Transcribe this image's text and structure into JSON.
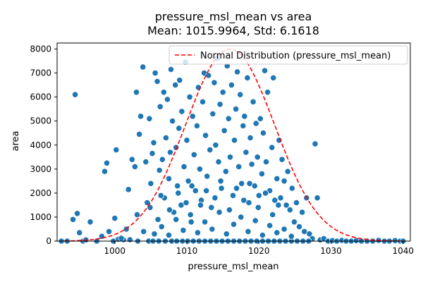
{
  "chart_data": {
    "type": "scatter",
    "title": "pressure_msl_mean vs area",
    "subtitle": "Mean: 1015.9964, Std: 6.1618",
    "xlabel": "pressure_msl_mean",
    "ylabel": "area",
    "xlim": [
      992.0,
      1041.0
    ],
    "ylim": [
      0,
      8250
    ],
    "xticks": [
      1000,
      1010,
      1020,
      1030,
      1040
    ],
    "yticks": [
      0,
      1000,
      2000,
      3000,
      4000,
      5000,
      6000,
      7000,
      8000
    ],
    "grid": false,
    "legend": {
      "position": "top-right",
      "entries": [
        "Normal Distribution (pressure_msl_mean)"
      ]
    },
    "colors": {
      "points": "#1f77b4",
      "points_edge": "#ffffff",
      "curve": "#ff0000"
    },
    "scatter_series": {
      "name": "",
      "points": [
        [
          992.6,
          0
        ],
        [
          993.4,
          0
        ],
        [
          994.2,
          900
        ],
        [
          994.5,
          6100
        ],
        [
          994.8,
          1150
        ],
        [
          995.1,
          350
        ],
        [
          995.6,
          0
        ],
        [
          996.0,
          50
        ],
        [
          996.6,
          800
        ],
        [
          997.5,
          0
        ],
        [
          998.2,
          200
        ],
        [
          998.6,
          2900
        ],
        [
          998.9,
          3250
        ],
        [
          999.2,
          400
        ],
        [
          999.8,
          0
        ],
        [
          1000.0,
          950
        ],
        [
          1000.2,
          3800
        ],
        [
          1000.5,
          80
        ],
        [
          1001.2,
          60
        ],
        [
          1001.6,
          500
        ],
        [
          1001.9,
          2150
        ],
        [
          1002.4,
          3400
        ],
        [
          1002.8,
          3100
        ],
        [
          1003.0,
          6200
        ],
        [
          1003.1,
          1100
        ],
        [
          1003.4,
          4450
        ],
        [
          1003.6,
          5200
        ],
        [
          1003.9,
          7250
        ],
        [
          1004.0,
          400
        ],
        [
          1004.3,
          3300
        ],
        [
          1004.5,
          1600
        ],
        [
          1004.8,
          5100
        ],
        [
          1005.0,
          2400
        ],
        [
          1005.2,
          3650
        ],
        [
          1005.4,
          4100
        ],
        [
          1005.6,
          7000
        ],
        [
          1005.9,
          6650
        ],
        [
          1006.0,
          900
        ],
        [
          1006.2,
          2950
        ],
        [
          1006.3,
          5600
        ],
        [
          1006.6,
          3400
        ],
        [
          1006.8,
          6200
        ],
        [
          1006.9,
          1800
        ],
        [
          1007.1,
          4300
        ],
        [
          1007.3,
          5900
        ],
        [
          1007.5,
          2600
        ],
        [
          1007.7,
          3700
        ],
        [
          1007.8,
          7150
        ],
        [
          1008.0,
          5000
        ],
        [
          1008.2,
          1200
        ],
        [
          1008.4,
          6500
        ],
        [
          1008.5,
          3900
        ],
        [
          1008.7,
          2300
        ],
        [
          1008.9,
          4700
        ],
        [
          1009.0,
          6700
        ],
        [
          1009.2,
          1500
        ],
        [
          1009.3,
          5400
        ],
        [
          1009.6,
          3100
        ],
        [
          1009.8,
          7450
        ],
        [
          1010.0,
          4200
        ],
        [
          1010.2,
          2500
        ],
        [
          1010.4,
          6000
        ],
        [
          1010.6,
          800
        ],
        [
          1010.8,
          5200
        ],
        [
          1011.0,
          3600
        ],
        [
          1011.2,
          2100
        ],
        [
          1011.4,
          4800
        ],
        [
          1011.6,
          6400
        ],
        [
          1011.8,
          3000
        ],
        [
          1012.0,
          1700
        ],
        [
          1012.2,
          5800
        ],
        [
          1012.4,
          7000
        ],
        [
          1012.6,
          4400
        ],
        [
          1012.8,
          2700
        ],
        [
          1013.0,
          6900
        ],
        [
          1013.2,
          3800
        ],
        [
          1013.4,
          1400
        ],
        [
          1013.6,
          5300
        ],
        [
          1013.8,
          6600
        ],
        [
          1014.0,
          4000
        ],
        [
          1014.2,
          7600
        ],
        [
          1014.4,
          3300
        ],
        [
          1014.6,
          5700
        ],
        [
          1014.8,
          2200
        ],
        [
          1015.0,
          6200
        ],
        [
          1015.2,
          4600
        ],
        [
          1015.4,
          2900
        ],
        [
          1015.6,
          7300
        ],
        [
          1015.8,
          5100
        ],
        [
          1016.0,
          3500
        ],
        [
          1016.2,
          6500
        ],
        [
          1016.4,
          1900
        ],
        [
          1016.6,
          4200
        ],
        [
          1016.8,
          5500
        ],
        [
          1017.0,
          7050
        ],
        [
          1017.2,
          3100
        ],
        [
          1017.4,
          6100
        ],
        [
          1017.6,
          2400
        ],
        [
          1017.8,
          4800
        ],
        [
          1018.0,
          5200
        ],
        [
          1018.2,
          3700
        ],
        [
          1018.4,
          6800
        ],
        [
          1018.6,
          1600
        ],
        [
          1018.8,
          4300
        ],
        [
          1019.0,
          3200
        ],
        [
          1019.2,
          5800
        ],
        [
          1019.4,
          2300
        ],
        [
          1019.6,
          4900
        ],
        [
          1019.8,
          3500
        ],
        [
          1020.0,
          1900
        ],
        [
          1020.2,
          5100
        ],
        [
          1020.4,
          2800
        ],
        [
          1020.6,
          4500
        ],
        [
          1020.8,
          7100
        ],
        [
          1021.0,
          3300
        ],
        [
          1021.2,
          6200
        ],
        [
          1021.5,
          2100
        ],
        [
          1021.8,
          3900
        ],
        [
          1022.0,
          6800
        ],
        [
          1022.2,
          1700
        ],
        [
          1022.5,
          2600
        ],
        [
          1022.8,
          4200
        ],
        [
          1023.0,
          1800
        ],
        [
          1023.2,
          3400
        ],
        [
          1023.5,
          2500
        ],
        [
          1023.8,
          1500
        ],
        [
          1024.0,
          2900
        ],
        [
          1024.3,
          1300
        ],
        [
          1024.6,
          2200
        ],
        [
          1024.9,
          800
        ],
        [
          1025.2,
          1600
        ],
        [
          1025.6,
          600
        ],
        [
          1026.0,
          1200
        ],
        [
          1026.3,
          400
        ],
        [
          1026.6,
          1800
        ],
        [
          1027.0,
          300
        ],
        [
          1027.4,
          100
        ],
        [
          1027.8,
          4050
        ],
        [
          1028.1,
          1800
        ],
        [
          1028.5,
          50
        ],
        [
          1029.0,
          100
        ],
        [
          1029.6,
          0
        ],
        [
          1030.2,
          20
        ],
        [
          1030.8,
          0
        ],
        [
          1031.5,
          30
        ],
        [
          1032.1,
          0
        ],
        [
          1032.8,
          0
        ],
        [
          1033.5,
          20
        ],
        [
          1034.2,
          0
        ],
        [
          1035.0,
          0
        ],
        [
          1035.8,
          0
        ],
        [
          1036.6,
          30
        ],
        [
          1037.4,
          0
        ],
        [
          1038.1,
          0
        ],
        [
          1038.9,
          20
        ],
        [
          1039.6,
          0
        ],
        [
          1040.0,
          0
        ],
        [
          1003.2,
          0
        ],
        [
          1004.7,
          0
        ],
        [
          1005.3,
          0
        ],
        [
          1006.1,
          0
        ],
        [
          1007.0,
          0
        ],
        [
          1007.9,
          0
        ],
        [
          1008.6,
          0
        ],
        [
          1009.4,
          0
        ],
        [
          1010.1,
          0
        ],
        [
          1010.9,
          0
        ],
        [
          1011.7,
          0
        ],
        [
          1012.5,
          0
        ],
        [
          1013.3,
          0
        ],
        [
          1014.1,
          0
        ],
        [
          1014.9,
          0
        ],
        [
          1015.7,
          0
        ],
        [
          1016.5,
          0
        ],
        [
          1017.3,
          0
        ],
        [
          1018.1,
          0
        ],
        [
          1018.9,
          0
        ],
        [
          1019.7,
          0
        ],
        [
          1020.5,
          0
        ],
        [
          1021.3,
          0
        ],
        [
          1022.1,
          0
        ],
        [
          1022.9,
          0
        ],
        [
          1023.7,
          0
        ],
        [
          1024.5,
          0
        ],
        [
          1025.3,
          0
        ],
        [
          1026.1,
          0
        ],
        [
          1026.9,
          0
        ],
        [
          1005.5,
          300
        ],
        [
          1006.5,
          600
        ],
        [
          1007.5,
          250
        ],
        [
          1008.5,
          900
        ],
        [
          1009.5,
          450
        ],
        [
          1010.5,
          1100
        ],
        [
          1011.5,
          350
        ],
        [
          1012.5,
          800
        ],
        [
          1013.5,
          500
        ],
        [
          1014.5,
          1200
        ],
        [
          1015.5,
          300
        ],
        [
          1016.5,
          700
        ],
        [
          1017.5,
          1000
        ],
        [
          1018.5,
          400
        ],
        [
          1019.5,
          850
        ],
        [
          1020.5,
          250
        ],
        [
          1021.5,
          650
        ],
        [
          1022.5,
          350
        ],
        [
          1023.5,
          500
        ],
        [
          1024.5,
          200
        ],
        [
          1004.9,
          1400
        ],
        [
          1006.4,
          1900
        ],
        [
          1007.6,
          1300
        ],
        [
          1008.8,
          2000
        ],
        [
          1009.9,
          1600
        ],
        [
          1010.7,
          2300
        ],
        [
          1011.9,
          1500
        ],
        [
          1012.7,
          2100
        ],
        [
          1013.9,
          1800
        ],
        [
          1014.7,
          2500
        ],
        [
          1015.9,
          1300
        ],
        [
          1016.9,
          2200
        ],
        [
          1017.9,
          1700
        ],
        [
          1018.7,
          2400
        ],
        [
          1019.9,
          1400
        ],
        [
          1020.9,
          2000
        ],
        [
          1021.9,
          1100
        ],
        [
          1022.7,
          1500
        ],
        [
          1000.9,
          120
        ],
        [
          1002.1,
          60
        ]
      ]
    },
    "curve_series": {
      "name": "Normal Distribution (pressure_msl_mean)",
      "mean": 1015.9964,
      "std": 6.1618,
      "peak": 8000,
      "x_range": [
        993.0,
        1040.0
      ]
    }
  }
}
